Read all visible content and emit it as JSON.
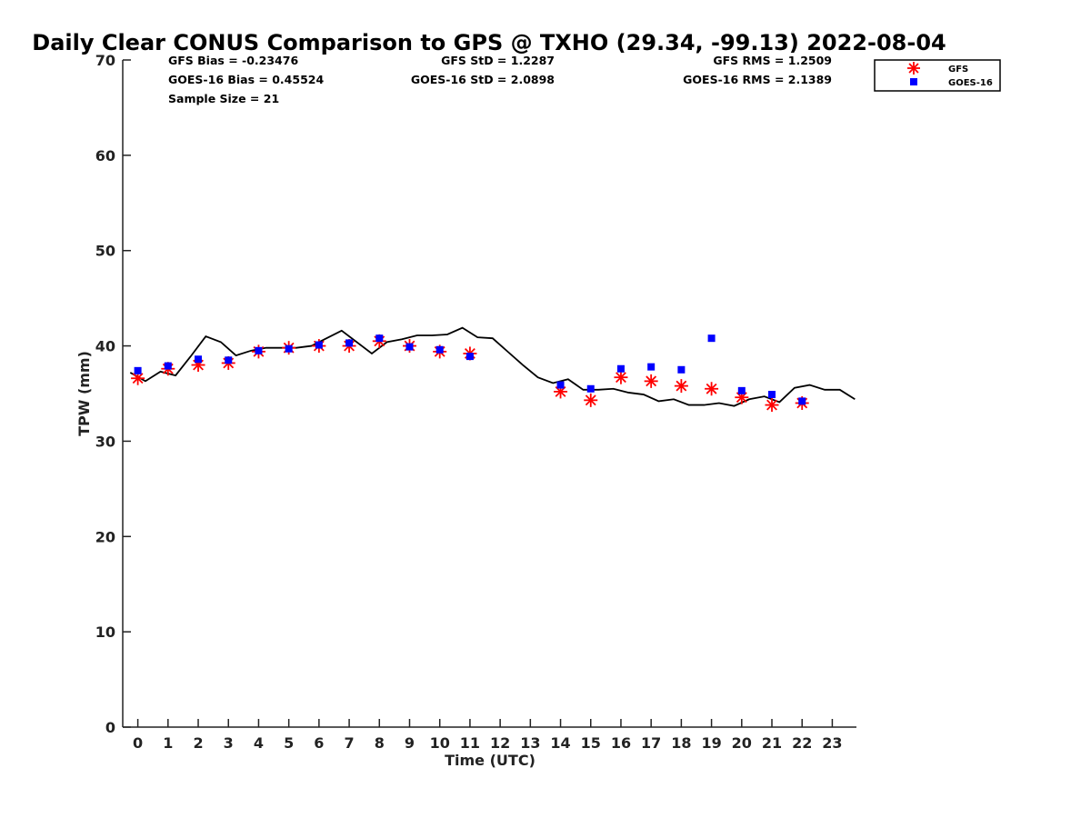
{
  "chart_data": {
    "type": "scatter",
    "title": "Daily Clear CONUS Comparison to GPS @ TXHO (29.34, -99.13) 2022-08-04",
    "xlabel": "Time (UTC)",
    "ylabel": "TPW (mm)",
    "xlim": [
      -0.5,
      23.8
    ],
    "ylim": [
      0,
      70
    ],
    "xticks": [
      0,
      1,
      2,
      3,
      4,
      5,
      6,
      7,
      8,
      9,
      10,
      11,
      12,
      13,
      14,
      15,
      16,
      17,
      18,
      19,
      20,
      21,
      22,
      23
    ],
    "yticks": [
      0,
      10,
      20,
      30,
      40,
      50,
      60,
      70
    ],
    "grid": false,
    "legend_position": "top-right",
    "stats": {
      "gfs_bias": "GFS Bias = -0.23476",
      "goes_bias": "GOES-16 Bias = 0.45524",
      "sample_size": "Sample Size = 21",
      "gfs_std": "GFS StD = 1.2287",
      "goes_std": "GOES-16 StD = 2.0898",
      "gfs_rms": "GFS RMS = 1.2509",
      "goes_rms": "GOES-16 RMS = 2.1389"
    },
    "series": [
      {
        "name": "GPS",
        "type": "line",
        "color": "#000000",
        "x": [
          -0.25,
          0.25,
          0.75,
          1.25,
          1.75,
          2.25,
          2.75,
          3.25,
          3.75,
          4.25,
          4.75,
          5.25,
          5.75,
          6.25,
          6.75,
          7.25,
          7.75,
          8.25,
          8.75,
          9.25,
          9.75,
          10.25,
          10.75,
          11.25,
          11.75,
          12.25,
          12.75,
          13.25,
          13.75,
          14.25,
          14.75,
          15.25,
          15.75,
          16.25,
          16.75,
          17.25,
          17.75,
          18.25,
          18.75,
          19.25,
          19.75,
          20.25,
          20.75,
          21.25,
          21.75,
          22.25,
          22.75,
          23.25,
          23.75
        ],
        "y": [
          37.2,
          36.3,
          37.3,
          36.9,
          38.9,
          41.0,
          40.4,
          39.0,
          39.5,
          39.8,
          39.8,
          39.8,
          40.0,
          40.8,
          41.6,
          40.4,
          39.2,
          40.4,
          40.7,
          41.1,
          41.1,
          41.2,
          41.9,
          40.9,
          40.8,
          39.4,
          38.0,
          36.7,
          36.1,
          36.5,
          35.4,
          35.4,
          35.5,
          35.1,
          34.9,
          34.2,
          34.4,
          33.8,
          33.8,
          34.0,
          33.7,
          34.4,
          34.7,
          34.1,
          35.6,
          35.9,
          35.4,
          35.4,
          34.4
        ]
      },
      {
        "name": "GFS",
        "type": "scatter",
        "marker": "asterisk",
        "color": "#ff0000",
        "x": [
          0,
          1,
          2,
          3,
          4,
          5,
          6,
          7,
          8,
          9,
          10,
          11,
          14,
          15,
          16,
          17,
          18,
          19,
          20,
          21,
          22
        ],
        "y": [
          36.6,
          37.6,
          38.0,
          38.2,
          39.4,
          39.8,
          40.0,
          40.0,
          40.5,
          40.0,
          39.4,
          39.2,
          35.2,
          34.3,
          36.7,
          36.3,
          35.8,
          35.5,
          34.6,
          33.8,
          34.0
        ]
      },
      {
        "name": "GOES-16",
        "type": "scatter",
        "marker": "square",
        "color": "#0000ff",
        "x": [
          0,
          1,
          2,
          3,
          4,
          5,
          6,
          7,
          8,
          9,
          10,
          11,
          14,
          15,
          16,
          17,
          18,
          19,
          20,
          21,
          22
        ],
        "y": [
          37.4,
          37.9,
          38.6,
          38.5,
          39.5,
          39.7,
          40.1,
          40.3,
          40.8,
          39.9,
          39.6,
          38.9,
          35.9,
          35.5,
          37.6,
          37.8,
          37.5,
          40.8,
          35.3,
          34.9,
          34.2
        ]
      }
    ],
    "legend": [
      {
        "label": "GFS",
        "marker": "asterisk",
        "color": "#ff0000"
      },
      {
        "label": "GOES-16",
        "marker": "square",
        "color": "#0000ff"
      }
    ]
  }
}
